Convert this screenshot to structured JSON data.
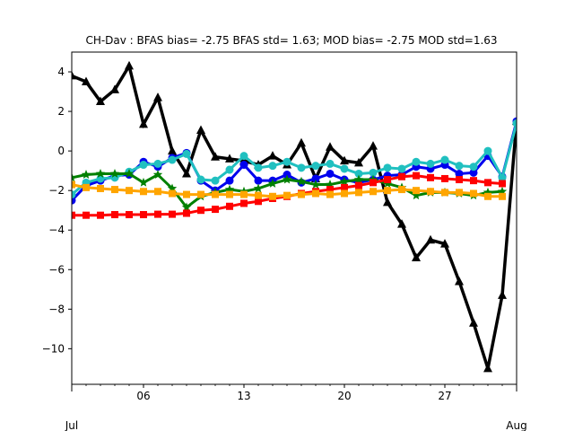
{
  "chart_data": {
    "type": "line",
    "title": "CH-Dav   : BFAS bias= -2.75 BFAS std= 1.63; MOD bias= -2.75 MOD std=1.63",
    "xlabel": "",
    "ylabel": "",
    "x_range": [
      "Jul 01",
      "Aug 01"
    ],
    "ylim": [
      -11.8,
      5.0
    ],
    "yticks": [
      4,
      2,
      0,
      -2,
      -4,
      -6,
      -8,
      -10
    ],
    "ytick_labels": [
      "4",
      "2",
      "0",
      "−2",
      "−4",
      "−6",
      "−8",
      "−10"
    ],
    "xticks": [
      {
        "day": 6,
        "label": "06"
      },
      {
        "day": 13,
        "label": "13"
      },
      {
        "day": 20,
        "label": "20"
      },
      {
        "day": 27,
        "label": "27"
      }
    ],
    "x_month_labels": [
      {
        "day": 1,
        "label": "Jul"
      },
      {
        "day": 32,
        "label": "Aug"
      }
    ],
    "grid": false,
    "legend": "none",
    "days": [
      1,
      2,
      3,
      4,
      5,
      6,
      7,
      8,
      9,
      10,
      11,
      12,
      13,
      14,
      15,
      16,
      17,
      18,
      19,
      20,
      21,
      22,
      23,
      24,
      25,
      26,
      27,
      28,
      29,
      30,
      31,
      32
    ],
    "series": [
      {
        "color": "#000000",
        "marker": "triangle",
        "line_width": 3.5,
        "values": [
          3.8,
          3.5,
          2.5,
          3.1,
          4.3,
          1.35,
          2.7,
          0.0,
          -1.15,
          1.05,
          -0.3,
          -0.4,
          -0.5,
          -0.7,
          -0.25,
          -0.7,
          0.4,
          -1.4,
          0.2,
          -0.5,
          -0.6,
          0.25,
          -2.6,
          -3.7,
          -5.4,
          -4.5,
          -4.7,
          -6.6,
          -8.7,
          -11.0,
          -7.3,
          1.5
        ]
      },
      {
        "color": "#0000ee",
        "marker": "circle",
        "line_width": 3.0,
        "values": [
          -2.5,
          -1.75,
          -1.5,
          -1.25,
          -1.2,
          -0.55,
          -0.8,
          -0.35,
          -0.1,
          -1.5,
          -2.0,
          -1.5,
          -0.7,
          -1.5,
          -1.5,
          -1.2,
          -1.6,
          -1.4,
          -1.15,
          -1.45,
          -1.6,
          -1.45,
          -1.25,
          -1.2,
          -0.8,
          -0.9,
          -0.7,
          -1.15,
          -1.1,
          -0.25,
          -1.3,
          1.5
        ]
      },
      {
        "color": "#20c0c0",
        "marker": "circle",
        "line_width": 3.0,
        "values": [
          -2.2,
          -1.6,
          -1.4,
          -1.35,
          -1.05,
          -0.7,
          -0.65,
          -0.45,
          -0.15,
          -1.45,
          -1.5,
          -0.95,
          -0.25,
          -0.85,
          -0.75,
          -0.55,
          -0.85,
          -0.75,
          -0.65,
          -0.9,
          -1.15,
          -1.1,
          -0.85,
          -0.9,
          -0.55,
          -0.65,
          -0.45,
          -0.75,
          -0.8,
          0.0,
          -1.35,
          1.4
        ]
      },
      {
        "color": "#008000",
        "marker": "star",
        "line_width": 3.0,
        "values": [
          -1.35,
          -1.2,
          -1.15,
          -1.15,
          -1.15,
          -1.6,
          -1.2,
          -1.9,
          -2.85,
          -2.3,
          -2.1,
          -1.95,
          -2.05,
          -1.9,
          -1.65,
          -1.45,
          -1.55,
          -1.7,
          -1.7,
          -1.55,
          -1.45,
          -1.45,
          -1.65,
          -1.85,
          -2.25,
          -2.1,
          -2.1,
          -2.15,
          -2.25,
          -2.1,
          -2.05,
          null
        ]
      },
      {
        "color": "#ff0000",
        "marker": "square",
        "line_width": 3.0,
        "values": [
          -3.25,
          -3.25,
          -3.25,
          -3.22,
          -3.22,
          -3.22,
          -3.2,
          -3.2,
          -3.15,
          -3.0,
          -2.95,
          -2.8,
          -2.65,
          -2.55,
          -2.4,
          -2.3,
          -2.15,
          -2.05,
          -1.95,
          -1.85,
          -1.75,
          -1.6,
          -1.45,
          -1.3,
          -1.25,
          -1.35,
          -1.4,
          -1.45,
          -1.5,
          -1.6,
          -1.65,
          null
        ]
      },
      {
        "color": "#ffa500",
        "marker": "square",
        "line_width": 3.0,
        "values": [
          -1.7,
          -1.85,
          -1.9,
          -1.95,
          -2.0,
          -2.05,
          -2.05,
          -2.15,
          -2.2,
          -2.2,
          -2.2,
          -2.2,
          -2.2,
          -2.25,
          -2.3,
          -2.25,
          -2.2,
          -2.15,
          -2.2,
          -2.15,
          -2.1,
          -2.05,
          -2.0,
          -1.95,
          -2.0,
          -2.05,
          -2.1,
          -2.1,
          -2.15,
          -2.3,
          -2.3,
          null
        ]
      }
    ]
  }
}
